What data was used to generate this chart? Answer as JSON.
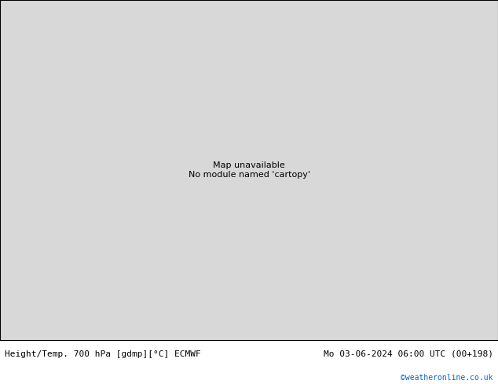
{
  "title_left": "Height/Temp. 700 hPa [gdmp][°C] ECMWF",
  "title_right": "Mo 03-06-2024 06:00 UTC (00+198)",
  "credit": "©weatheronline.co.uk",
  "credit_color": "#0066cc",
  "land_color": "#c8edb0",
  "ocean_color": "#d8d8d8",
  "border_color": "#aaaaaa",
  "contour_color": "#000000",
  "fig_width": 6.34,
  "fig_height": 4.9,
  "dpi": 100,
  "lon_min": -30,
  "lon_max": 42,
  "lat_min": 30,
  "lat_max": 73,
  "bottom_bar_color": "#ffffff",
  "bottom_bar_height": 0.115,
  "font_size_bottom": 8.0,
  "font_size_credit": 7.0
}
